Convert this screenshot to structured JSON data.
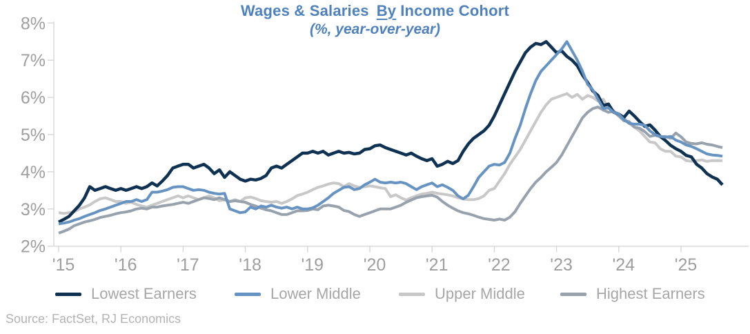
{
  "chart_data": {
    "type": "line",
    "title": "Wages & Salaries By Income Cohort",
    "title_prefix": "Wages & Salaries",
    "title_underlined": "By",
    "title_suffix": "Income Cohort",
    "subtitle": "(%, year-over-year)",
    "title_color": "#4f81bd",
    "grid": false,
    "legend_position": "bottom",
    "axis_color": "#d9d9d9",
    "tick_label_color": "#9e9e9e",
    "x_axis": {
      "start_year": 2015,
      "frequency": "monthly",
      "ticks": [
        "'15",
        "'16",
        "'17",
        "'18",
        "'19",
        "'20",
        "'21",
        "'22",
        "'23",
        "'24",
        "'25"
      ]
    },
    "y_axis": {
      "min": 2,
      "max": 8,
      "unit": "%",
      "ticks": [
        "8%",
        "7%",
        "6%",
        "5%",
        "4%",
        "3%",
        "2%"
      ]
    },
    "series": [
      {
        "name": "Lowest Earners",
        "color": "#0f3253",
        "values": [
          2.65,
          2.72,
          2.8,
          2.95,
          3.1,
          3.3,
          3.6,
          3.5,
          3.55,
          3.6,
          3.55,
          3.5,
          3.55,
          3.5,
          3.55,
          3.6,
          3.55,
          3.6,
          3.7,
          3.62,
          3.75,
          3.9,
          4.1,
          4.15,
          4.2,
          4.2,
          4.1,
          4.15,
          4.2,
          4.1,
          3.95,
          4.05,
          3.85,
          4.0,
          3.9,
          3.8,
          3.75,
          3.8,
          3.78,
          3.82,
          3.9,
          4.1,
          4.15,
          4.1,
          4.2,
          4.3,
          4.4,
          4.5,
          4.5,
          4.55,
          4.5,
          4.55,
          4.45,
          4.5,
          4.55,
          4.5,
          4.52,
          4.48,
          4.5,
          4.6,
          4.62,
          4.7,
          4.72,
          4.65,
          4.6,
          4.55,
          4.5,
          4.45,
          4.5,
          4.42,
          4.35,
          4.3,
          4.35,
          4.15,
          4.2,
          4.28,
          4.22,
          4.3,
          4.55,
          4.75,
          4.9,
          5.0,
          5.1,
          5.25,
          5.5,
          5.8,
          6.1,
          6.4,
          6.7,
          6.95,
          7.2,
          7.35,
          7.45,
          7.42,
          7.5,
          7.35,
          7.2,
          7.25,
          7.1,
          7.0,
          6.85,
          6.6,
          6.4,
          6.17,
          6.05,
          5.78,
          5.82,
          5.6,
          5.55,
          5.46,
          5.63,
          5.5,
          5.35,
          5.22,
          5.26,
          5.12,
          4.95,
          4.84,
          4.71,
          4.62,
          4.55,
          4.44,
          4.4,
          4.2,
          4.1,
          3.95,
          3.86,
          3.8,
          3.65
        ]
      },
      {
        "name": "Lower Middle",
        "color": "#6693c1",
        "values": [
          2.6,
          2.62,
          2.65,
          2.7,
          2.74,
          2.8,
          2.85,
          2.9,
          2.96,
          3.0,
          3.05,
          3.1,
          3.15,
          3.2,
          3.2,
          3.25,
          3.2,
          3.25,
          3.45,
          3.45,
          3.48,
          3.52,
          3.58,
          3.6,
          3.6,
          3.55,
          3.5,
          3.52,
          3.5,
          3.45,
          3.42,
          3.4,
          3.42,
          3.0,
          2.95,
          2.9,
          2.92,
          3.05,
          3.0,
          3.08,
          3.05,
          3.1,
          3.05,
          3.02,
          3.05,
          3.0,
          3.05,
          3.0,
          3.0,
          3.03,
          3.1,
          3.2,
          3.3,
          3.42,
          3.5,
          3.58,
          3.6,
          3.52,
          3.55,
          3.65,
          3.72,
          3.8,
          3.72,
          3.7,
          3.72,
          3.7,
          3.72,
          3.68,
          3.6,
          3.52,
          3.6,
          3.65,
          3.7,
          3.6,
          3.65,
          3.58,
          3.5,
          3.35,
          3.27,
          3.37,
          3.6,
          3.85,
          4.0,
          4.15,
          4.2,
          4.18,
          4.25,
          4.5,
          4.9,
          5.25,
          5.7,
          6.1,
          6.45,
          6.7,
          6.85,
          7.0,
          7.15,
          7.3,
          7.5,
          7.25,
          7.0,
          6.7,
          6.35,
          6.2,
          5.95,
          5.7,
          5.72,
          5.6,
          5.55,
          5.4,
          5.3,
          5.28,
          5.28,
          5.25,
          5.1,
          5.0,
          4.95,
          4.93,
          4.95,
          4.85,
          4.8,
          4.72,
          4.68,
          4.62,
          4.55,
          4.48,
          4.45,
          4.44,
          4.42
        ]
      },
      {
        "name": "Upper Middle",
        "color": "#c8c8c8",
        "values": [
          2.9,
          2.88,
          2.9,
          2.92,
          3.0,
          3.05,
          3.11,
          3.2,
          3.27,
          3.3,
          3.25,
          3.2,
          3.2,
          3.15,
          3.18,
          3.12,
          3.08,
          3.05,
          3.1,
          3.15,
          3.2,
          3.25,
          3.3,
          3.35,
          3.3,
          3.35,
          3.3,
          3.25,
          3.3,
          3.35,
          3.3,
          3.22,
          3.25,
          3.2,
          3.25,
          3.2,
          3.3,
          3.32,
          3.28,
          3.22,
          3.2,
          3.18,
          3.2,
          3.15,
          3.2,
          3.27,
          3.36,
          3.4,
          3.45,
          3.52,
          3.58,
          3.62,
          3.67,
          3.7,
          3.68,
          3.6,
          3.68,
          3.62,
          3.58,
          3.6,
          3.62,
          3.6,
          3.57,
          3.55,
          3.33,
          3.38,
          3.3,
          3.24,
          3.3,
          3.35,
          3.4,
          3.42,
          3.45,
          3.42,
          3.4,
          3.38,
          3.35,
          3.3,
          3.27,
          3.25,
          3.25,
          3.28,
          3.35,
          3.5,
          3.55,
          3.75,
          3.95,
          4.2,
          4.4,
          4.6,
          4.85,
          5.1,
          5.35,
          5.6,
          5.8,
          5.95,
          6.0,
          6.05,
          6.1,
          6.0,
          6.08,
          5.95,
          6.05,
          6.0,
          5.9,
          5.95,
          5.7,
          5.65,
          5.5,
          5.45,
          5.3,
          5.2,
          5.1,
          4.95,
          4.8,
          4.78,
          4.62,
          4.55,
          4.55,
          4.42,
          4.4,
          4.3,
          4.28,
          4.3,
          4.32,
          4.28,
          4.3,
          4.3,
          4.3
        ]
      },
      {
        "name": "Highest Earners",
        "color": "#98a2ad",
        "values": [
          2.35,
          2.4,
          2.46,
          2.55,
          2.6,
          2.65,
          2.68,
          2.72,
          2.77,
          2.8,
          2.83,
          2.87,
          2.9,
          2.92,
          2.95,
          3.0,
          3.02,
          3.0,
          3.05,
          3.05,
          3.08,
          3.1,
          3.12,
          3.15,
          3.18,
          3.15,
          3.2,
          3.25,
          3.3,
          3.28,
          3.25,
          3.3,
          3.25,
          3.2,
          3.22,
          3.2,
          3.18,
          3.12,
          3.08,
          3.02,
          2.98,
          2.95,
          2.9,
          2.85,
          2.85,
          2.9,
          2.95,
          2.95,
          2.96,
          3.0,
          2.98,
          3.08,
          3.1,
          3.08,
          3.05,
          2.96,
          2.93,
          2.85,
          2.8,
          2.85,
          2.9,
          2.95,
          3.0,
          3.0,
          3.0,
          3.05,
          3.1,
          3.18,
          3.24,
          3.3,
          3.33,
          3.35,
          3.37,
          3.32,
          3.2,
          3.1,
          3.02,
          2.95,
          2.9,
          2.87,
          2.83,
          2.78,
          2.74,
          2.72,
          2.7,
          2.73,
          2.7,
          2.78,
          2.93,
          3.15,
          3.35,
          3.55,
          3.72,
          3.85,
          4.0,
          4.12,
          4.25,
          4.45,
          4.7,
          4.95,
          5.2,
          5.45,
          5.6,
          5.7,
          5.74,
          5.66,
          5.6,
          5.62,
          5.5,
          5.37,
          5.35,
          5.2,
          5.17,
          5.08,
          4.95,
          4.98,
          4.94,
          4.95,
          4.9,
          5.04,
          4.94,
          4.8,
          4.76,
          4.75,
          4.78,
          4.74,
          4.72,
          4.68,
          4.65
        ]
      }
    ]
  },
  "source": {
    "label": "Source: FactSet, RJ Economics"
  }
}
